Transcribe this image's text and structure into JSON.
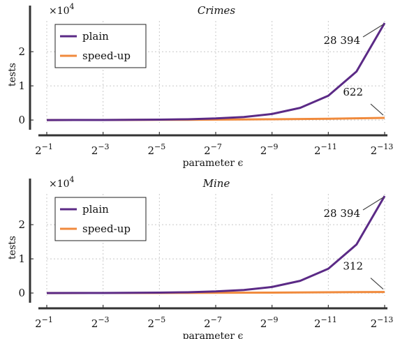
{
  "chart_data": [
    {
      "type": "line",
      "title": "Crimes",
      "xlabel": "parameter ϵ",
      "ylabel": "tests",
      "y_multiplier": "×10",
      "y_multiplier_exp": "4",
      "x": [
        -1,
        -2,
        -3,
        -4,
        -5,
        -6,
        -7,
        -8,
        -9,
        -10,
        -11,
        -12,
        -13
      ],
      "x_ticks": [
        -1,
        -3,
        -5,
        -7,
        -9,
        -11,
        -13
      ],
      "x_tick_base": "2",
      "x_tick_exps": [
        "−1",
        "−3",
        "−5",
        "−7",
        "−9",
        "−11",
        "−13"
      ],
      "y_ticks": [
        0,
        10000,
        20000
      ],
      "y_tick_labels": [
        "0",
        "1",
        "2"
      ],
      "ylim": [
        -800,
        29000
      ],
      "grid": true,
      "legend_position": "top-left",
      "series": [
        {
          "name": "plain",
          "color": "#5b2a86",
          "values": [
            4,
            10,
            25,
            55,
            115,
            230,
            460,
            900,
            1780,
            3560,
            7100,
            14200,
            28394
          ]
        },
        {
          "name": "speed-up",
          "color": "#f08a3c",
          "values": [
            4,
            8,
            15,
            27,
            48,
            80,
            120,
            170,
            230,
            300,
            390,
            500,
            622
          ]
        }
      ],
      "annotations": [
        {
          "text": "28 394",
          "series": 0,
          "x": -13,
          "y": 28394
        },
        {
          "text": "622",
          "series": 1,
          "x": -13,
          "y": 622
        }
      ]
    },
    {
      "type": "line",
      "title": "Mine",
      "xlabel": "parameter ϵ",
      "ylabel": "tests",
      "y_multiplier": "×10",
      "y_multiplier_exp": "4",
      "x": [
        -1,
        -2,
        -3,
        -4,
        -5,
        -6,
        -7,
        -8,
        -9,
        -10,
        -11,
        -12,
        -13
      ],
      "x_ticks": [
        -1,
        -3,
        -5,
        -7,
        -9,
        -11,
        -13
      ],
      "x_tick_base": "2",
      "x_tick_exps": [
        "−1",
        "−3",
        "−5",
        "−7",
        "−9",
        "−11",
        "−13"
      ],
      "y_ticks": [
        0,
        10000,
        20000
      ],
      "y_tick_labels": [
        "0",
        "1",
        "2"
      ],
      "ylim": [
        -800,
        29000
      ],
      "grid": true,
      "legend_position": "top-left",
      "series": [
        {
          "name": "plain",
          "color": "#5b2a86",
          "values": [
            4,
            10,
            25,
            55,
            115,
            230,
            460,
            900,
            1780,
            3560,
            7100,
            14200,
            28394
          ]
        },
        {
          "name": "speed-up",
          "color": "#f08a3c",
          "values": [
            3,
            6,
            10,
            16,
            25,
            40,
            60,
            90,
            125,
            170,
            220,
            265,
            312
          ]
        }
      ],
      "annotations": [
        {
          "text": "28 394",
          "series": 0,
          "x": -13,
          "y": 28394
        },
        {
          "text": "312",
          "series": 1,
          "x": -13,
          "y": 312
        }
      ]
    }
  ]
}
